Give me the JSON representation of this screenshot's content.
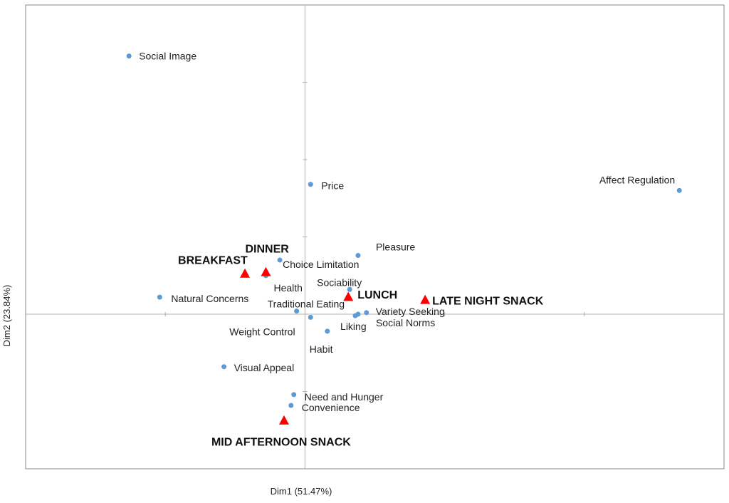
{
  "chart_data": {
    "type": "scatter",
    "xlabel": "Dim1 (51.47%)",
    "ylabel": "Dim2 (23.84%)",
    "xlim": [
      -1.0,
      1.5
    ],
    "ylim": [
      -1.0,
      2.0
    ],
    "grid": false,
    "legend": "none",
    "series": [
      {
        "marker": "circle",
        "color": "#5b9bd5",
        "points": [
          {
            "label": "Social Image",
            "x": -0.63,
            "y": 1.67
          },
          {
            "label": "Affect Regulation",
            "x": 1.34,
            "y": 0.8
          },
          {
            "label": "Price",
            "x": 0.02,
            "y": 0.84
          },
          {
            "label": "Pleasure",
            "x": 0.19,
            "y": 0.38
          },
          {
            "label": "Choice Limitation",
            "x": -0.09,
            "y": 0.35
          },
          {
            "label": "Health",
            "x": -0.14,
            "y": 0.25
          },
          {
            "label": "Sociability",
            "x": 0.16,
            "y": 0.16
          },
          {
            "label": "Natural Concerns",
            "x": -0.52,
            "y": 0.11
          },
          {
            "label": "Traditional Eating",
            "x": -0.03,
            "y": 0.02
          },
          {
            "label": "Variety Seeking",
            "x": 0.22,
            "y": 0.01
          },
          {
            "label": "Liking",
            "x": 0.18,
            "y": -0.01
          },
          {
            "label": "Social Norms",
            "x": 0.19,
            "y": 0.0
          },
          {
            "label": "Weight Control",
            "x": 0.02,
            "y": -0.02
          },
          {
            "label": "Habit",
            "x": 0.08,
            "y": -0.11
          },
          {
            "label": "Visual Appeal",
            "x": -0.29,
            "y": -0.34
          },
          {
            "label": "Need and Hunger",
            "x": -0.04,
            "y": -0.52
          },
          {
            "label": "Convenience",
            "x": -0.05,
            "y": -0.59
          }
        ]
      },
      {
        "marker": "triangle",
        "color": "#ff0000",
        "points": [
          {
            "label": "BREAKFAST",
            "x": -0.215,
            "y": 0.26
          },
          {
            "label": "DINNER",
            "x": -0.14,
            "y": 0.27
          },
          {
            "label": "LUNCH",
            "x": 0.155,
            "y": 0.11
          },
          {
            "label": "LATE NIGHT SNACK",
            "x": 0.43,
            "y": 0.09
          },
          {
            "label": "MID AFTERNOON SNACK",
            "x": -0.075,
            "y": -0.69
          }
        ]
      }
    ]
  }
}
